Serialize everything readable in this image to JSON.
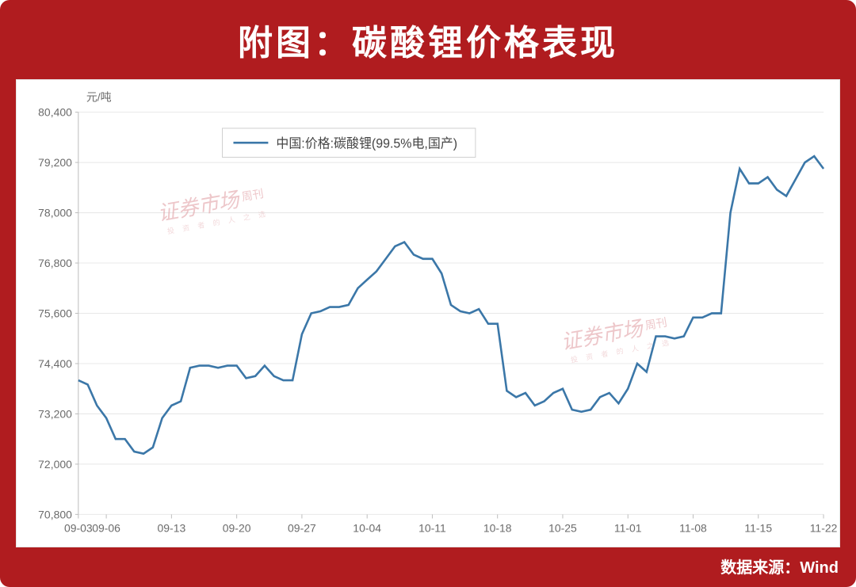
{
  "page": {
    "title": "附图：碳酸锂价格表现",
    "source_label": "数据来源：Wind"
  },
  "watermark": {
    "main": "证券市场",
    "suffix": "周刊",
    "subline": "投 资 者 的 人 之 选"
  },
  "colors": {
    "outer_bg": "#b01c1f",
    "panel_bg": "#ffffff",
    "title_text": "#ffffff",
    "footer_text": "#ffffff",
    "axis_text": "#6b6b6b",
    "grid": "#e8e8e8",
    "legend_border": "#d0d0d0",
    "legend_text": "#444444",
    "series": "#3b77a8",
    "watermark": "#e09aa0"
  },
  "chart": {
    "type": "line",
    "y_unit_label": "元/吨",
    "legend": {
      "label": "中国:价格:碳酸锂(99.5%电,国产)"
    },
    "ylim": [
      70800,
      80400
    ],
    "ytick_step": 1200,
    "yticks": [
      70800,
      72000,
      73200,
      74400,
      75600,
      76800,
      78000,
      79200,
      80400
    ],
    "ytick_labels": [
      "70,800",
      "72,000",
      "73,200",
      "74,400",
      "75,600",
      "76,800",
      "78,000",
      "79,200",
      "80,400"
    ],
    "xtick_labels": [
      "09-03",
      "09-06",
      "09-13",
      "09-20",
      "09-27",
      "10-04",
      "10-11",
      "10-18",
      "10-25",
      "11-01",
      "11-08",
      "11-15",
      "11-22"
    ],
    "xtick_positions": [
      0,
      3,
      10,
      17,
      24,
      31,
      38,
      45,
      52,
      59,
      66,
      73,
      80
    ],
    "x_domain": [
      0,
      80
    ],
    "line_width": 2.6,
    "grid_on": true,
    "background_color": "#ffffff",
    "series_data": {
      "x": [
        0,
        1,
        2,
        3,
        4,
        5,
        6,
        7,
        8,
        9,
        10,
        11,
        12,
        13,
        14,
        15,
        16,
        17,
        18,
        19,
        20,
        21,
        22,
        23,
        24,
        25,
        26,
        27,
        28,
        29,
        30,
        31,
        32,
        33,
        34,
        35,
        36,
        37,
        38,
        39,
        40,
        41,
        42,
        43,
        44,
        45,
        46,
        47,
        48,
        49,
        50,
        51,
        52,
        53,
        54,
        55,
        56,
        57,
        58,
        59,
        60,
        61,
        62,
        63,
        64,
        65,
        66,
        67,
        68,
        69,
        70,
        71,
        72,
        73,
        74,
        75,
        76,
        77,
        78,
        79,
        80
      ],
      "y": [
        74000,
        73900,
        73400,
        73100,
        72600,
        72600,
        72300,
        72250,
        72400,
        73100,
        73400,
        73500,
        74300,
        74350,
        74350,
        74300,
        74350,
        74350,
        74050,
        74100,
        74350,
        74100,
        74000,
        74000,
        75100,
        75600,
        75650,
        75750,
        75750,
        75800,
        76200,
        76400,
        76600,
        76900,
        77200,
        77300,
        77000,
        76900,
        76900,
        76550,
        75800,
        75650,
        75600,
        75700,
        75350,
        75350,
        73750,
        73600,
        73700,
        73400,
        73500,
        73700,
        73800,
        73300,
        73250,
        73300,
        73600,
        73700,
        73450,
        73800,
        74400,
        74200,
        75050,
        75050,
        75000,
        75050,
        75500,
        75500,
        75600,
        75600,
        78000,
        79050,
        78700,
        78700,
        78850,
        78550,
        78400,
        78800,
        79200,
        79350,
        79050
      ]
    }
  }
}
